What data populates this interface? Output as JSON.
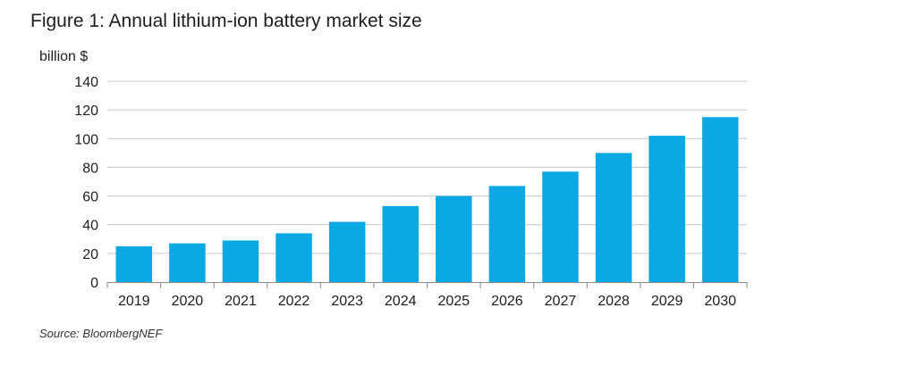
{
  "title": "Figure 1: Annual lithium-ion battery market size",
  "source": "Source: BloombergNEF",
  "chart_data": {
    "type": "bar",
    "title": "Figure 1: Annual lithium-ion battery market size",
    "ylabel": "billion $",
    "xlabel": "",
    "categories": [
      "2019",
      "2020",
      "2021",
      "2022",
      "2023",
      "2024",
      "2025",
      "2026",
      "2027",
      "2028",
      "2029",
      "2030"
    ],
    "values": [
      25,
      27,
      29,
      34,
      42,
      53,
      60,
      67,
      77,
      90,
      102,
      115
    ],
    "ylim": [
      0,
      140
    ],
    "yticks": [
      0,
      20,
      40,
      60,
      80,
      100,
      120,
      140
    ],
    "grid": true,
    "bar_color": "#0aa9e3",
    "grid_color": "#c8c8c8",
    "legend": "none"
  }
}
